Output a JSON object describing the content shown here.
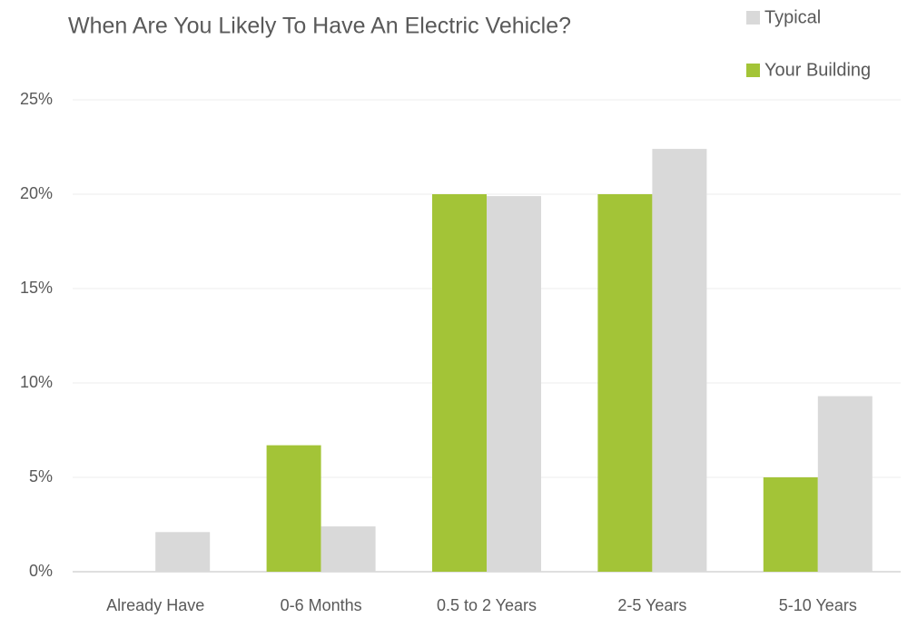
{
  "chart_data": {
    "type": "bar",
    "title": "When Are You Likely To Have An Electric Vehicle?",
    "categories": [
      "Already Have",
      "0-6 Months",
      "0.5 to 2 Years",
      "2-5 Years",
      "5-10 Years"
    ],
    "series": [
      {
        "name": "Your Building",
        "color": "#a3c437",
        "values": [
          0,
          6.7,
          20,
          20,
          5
        ]
      },
      {
        "name": "Typical",
        "color": "#d9d9d9",
        "values": [
          2.1,
          2.4,
          19.9,
          22.4,
          9.3
        ]
      }
    ],
    "ylim": [
      0,
      25
    ],
    "yticks": [
      {
        "value": 0,
        "label": "0%"
      },
      {
        "value": 5,
        "label": "5%"
      },
      {
        "value": 10,
        "label": "10%"
      },
      {
        "value": 15,
        "label": "15%"
      },
      {
        "value": 20,
        "label": "20%"
      },
      {
        "value": 25,
        "label": "25%"
      }
    ],
    "grid": true
  }
}
